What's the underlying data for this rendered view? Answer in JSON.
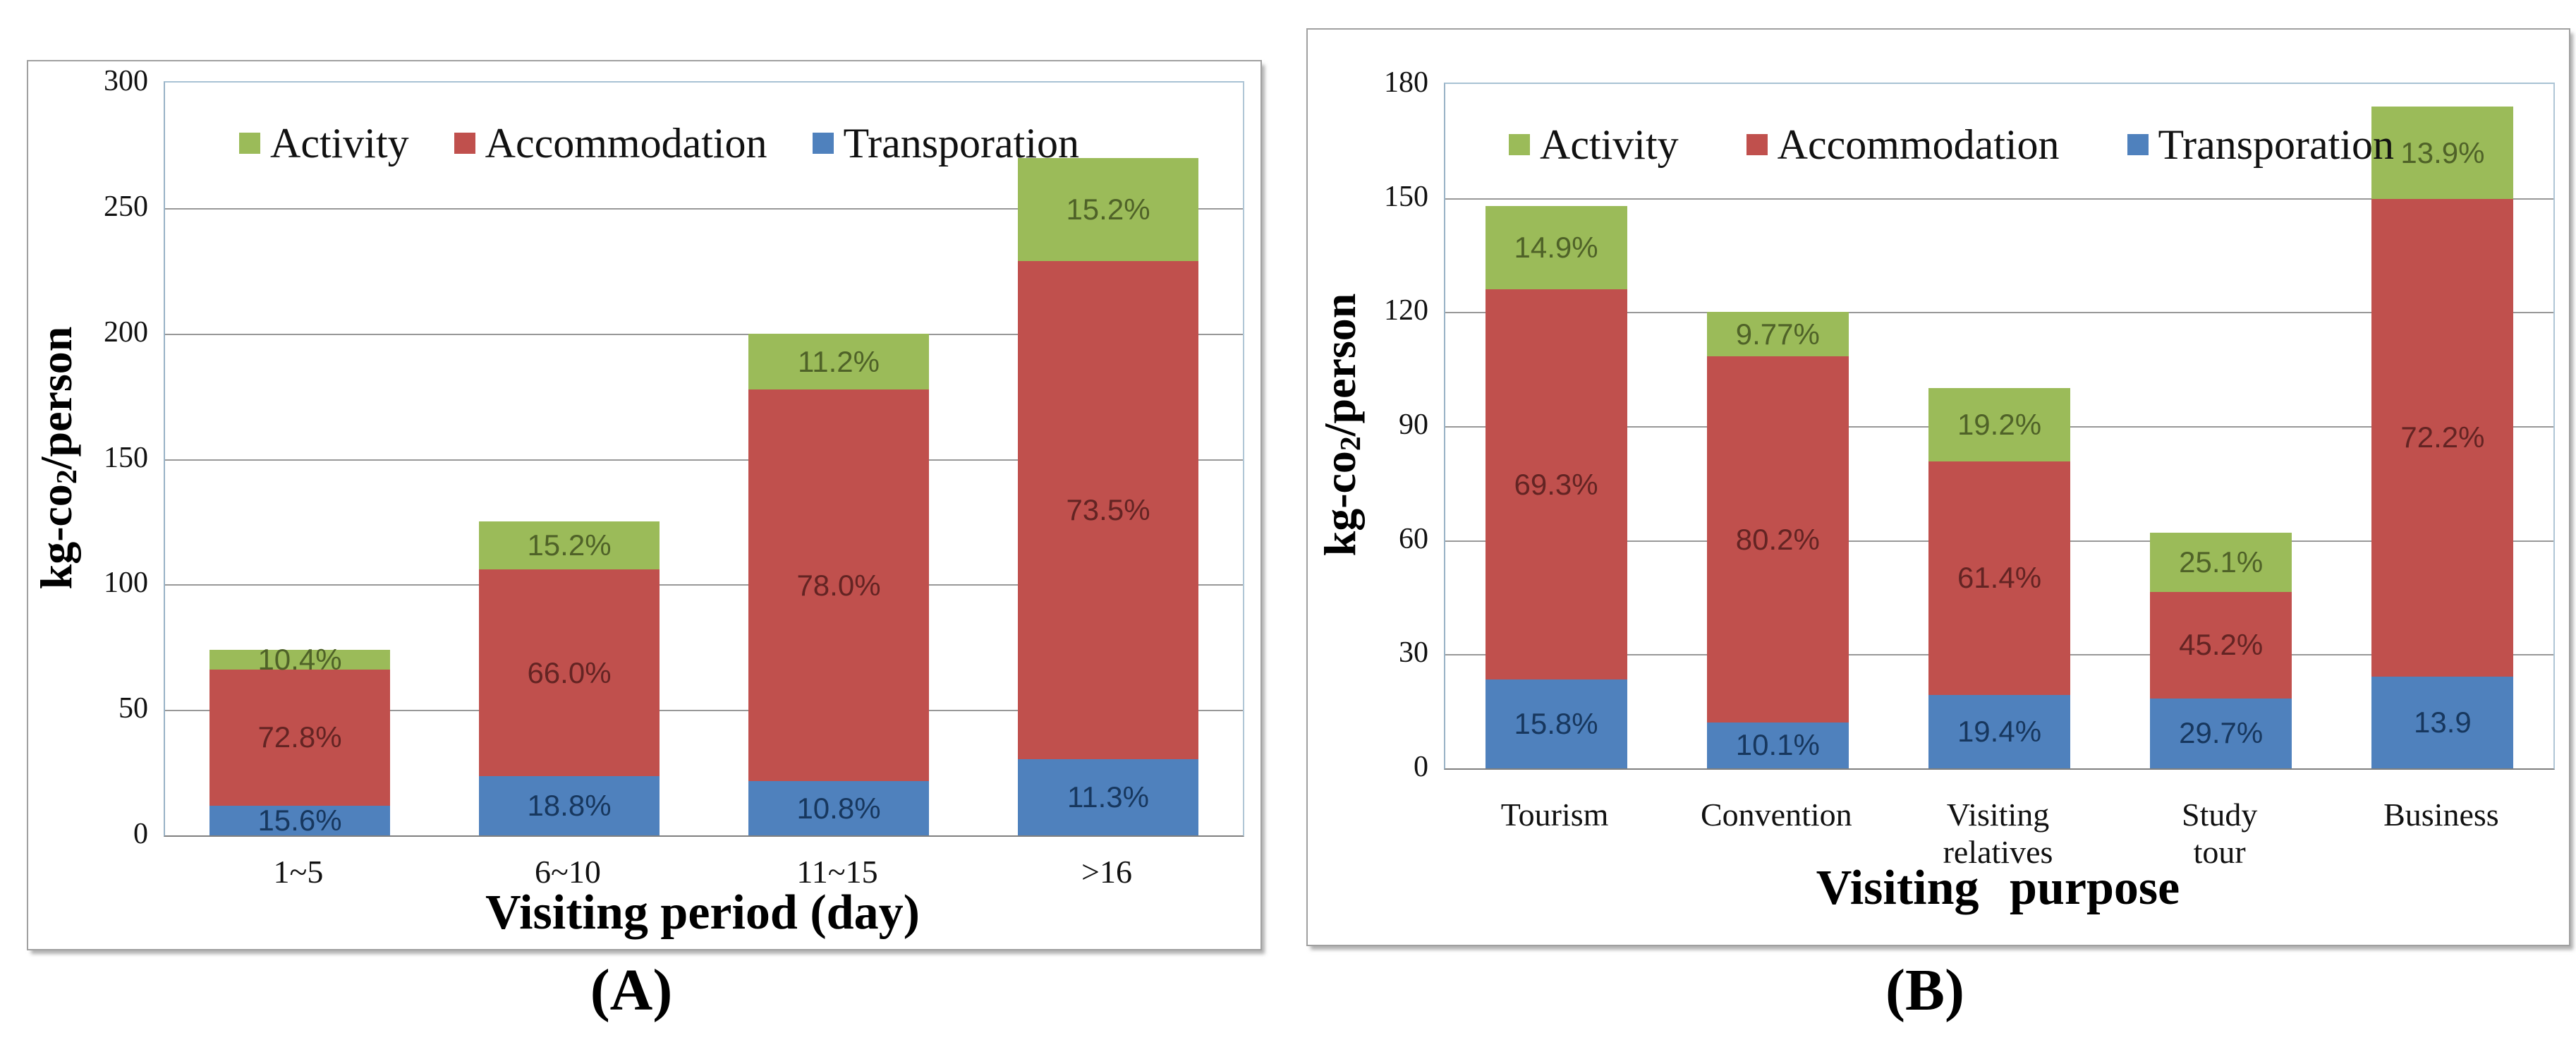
{
  "captions": {
    "a": "(A)",
    "b": "(B)"
  },
  "legend": {
    "items": [
      {
        "label": "Activity",
        "color": "#9bbb59"
      },
      {
        "label": "Accommodation",
        "color": "#c0504d"
      },
      {
        "label": "Transporation",
        "color": "#4f81bd"
      }
    ]
  },
  "colors": {
    "activity": "#9bbb59",
    "accommodation": "#c0504d",
    "transportation": "#4f81bd",
    "activity_label": "#4f6228",
    "accommodation_label": "#632423",
    "transportation_label": "#17375e",
    "gridline": "#989898",
    "axis_line": "#7f7f7f"
  },
  "chart_data": [
    {
      "id": "A",
      "type": "bar",
      "stacked": true,
      "title": "",
      "xlabel": "Visiting period (day)",
      "ylabel": "kg-co2/person",
      "ylabel_parts": {
        "pre": "kg-co",
        "sub": "2",
        "post": "/person"
      },
      "ylim": [
        0,
        300
      ],
      "ytick_step": 50,
      "yticks": [
        "0",
        "50",
        "100",
        "150",
        "200",
        "250",
        "300"
      ],
      "grid": true,
      "legend_position": "top-inside",
      "categories": [
        "1~5",
        "6~10",
        "11~15",
        ">16"
      ],
      "totals": [
        74,
        125,
        200,
        270
      ],
      "series": [
        {
          "name": "Transporation",
          "color": "#4f81bd",
          "label_color": "#17375e",
          "pct": [
            15.6,
            18.8,
            10.8,
            11.3
          ],
          "labels": [
            "15.6%",
            "18.8%",
            "10.8%",
            "11.3%"
          ]
        },
        {
          "name": "Accommodation",
          "color": "#c0504d",
          "label_color": "#632423",
          "pct": [
            72.8,
            66.0,
            78.0,
            73.5
          ],
          "labels": [
            "72.8%",
            "66.0%",
            "78.0%",
            "73.5%"
          ]
        },
        {
          "name": "Activity",
          "color": "#9bbb59",
          "label_color": "#4f6228",
          "pct": [
            10.4,
            15.2,
            11.2,
            15.2
          ],
          "labels": [
            "10.4%",
            "15.2%",
            "11.2%",
            "15.2%"
          ]
        }
      ]
    },
    {
      "id": "B",
      "type": "bar",
      "stacked": true,
      "title": "",
      "xlabel": "Visiting purpose",
      "ylabel": "kg-co2/person",
      "ylabel_parts": {
        "pre": "kg-co",
        "sub": "2",
        "post": "/person"
      },
      "ylim": [
        0,
        180
      ],
      "ytick_step": 30,
      "yticks": [
        "0",
        "30",
        "60",
        "90",
        "120",
        "150",
        "180"
      ],
      "grid": true,
      "legend_position": "top-inside",
      "categories": [
        "Tourism",
        "Convention",
        "Visiting relatives",
        "Study tour",
        "Business"
      ],
      "totals": [
        148,
        120,
        100,
        62,
        174
      ],
      "series": [
        {
          "name": "Transporation",
          "color": "#4f81bd",
          "label_color": "#17375e",
          "pct": [
            15.8,
            10.1,
            19.4,
            29.7,
            13.9
          ],
          "labels": [
            "15.8%",
            "10.1%",
            "19.4%",
            "29.7%",
            "13.9"
          ]
        },
        {
          "name": "Accommodation",
          "color": "#c0504d",
          "label_color": "#632423",
          "pct": [
            69.3,
            80.2,
            61.4,
            45.2,
            72.2
          ],
          "labels": [
            "69.3%",
            "80.2%",
            "61.4%",
            "45.2%",
            "72.2%"
          ]
        },
        {
          "name": "Activity",
          "color": "#9bbb59",
          "label_color": "#4f6228",
          "pct": [
            14.9,
            9.77,
            19.2,
            25.1,
            13.9
          ],
          "labels": [
            "14.9%",
            "9.77%",
            "19.2%",
            "25.1%",
            "13.9%"
          ]
        }
      ]
    }
  ]
}
